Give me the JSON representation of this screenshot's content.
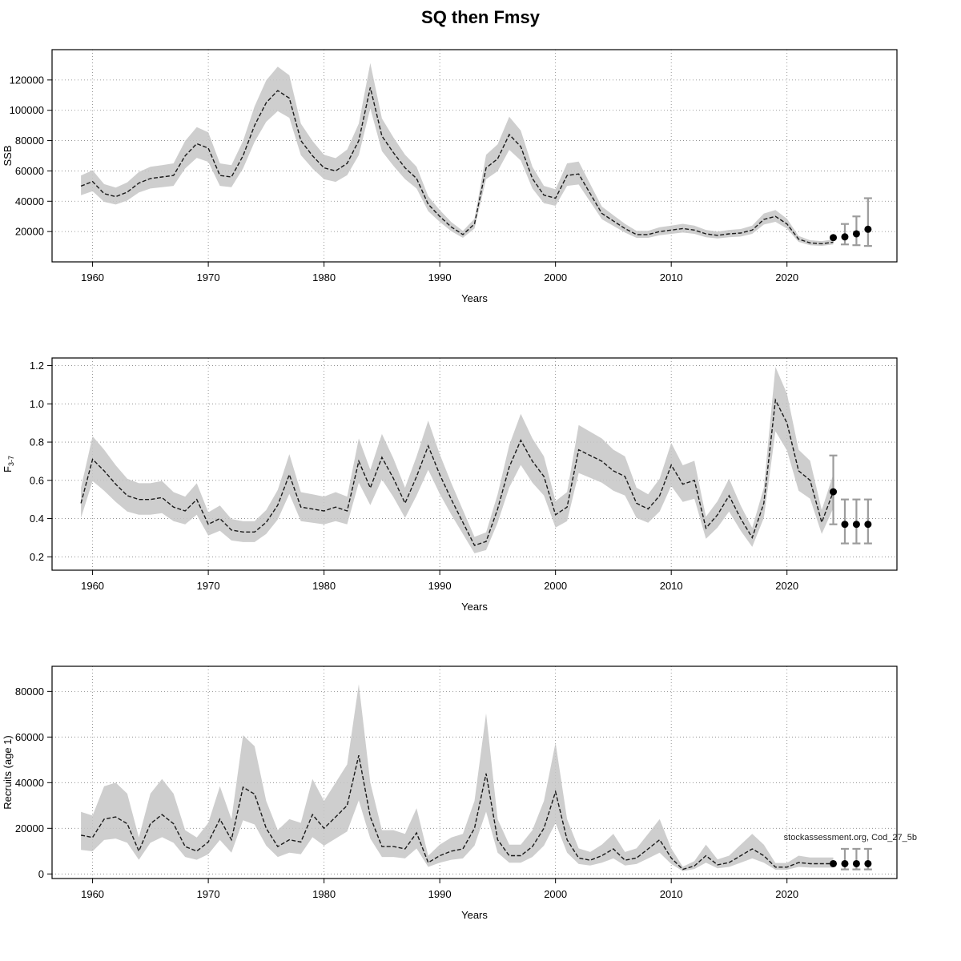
{
  "title": "SQ then Fmsy",
  "annotation": "stockassessment.org, Cod_27_5b",
  "colors": {
    "band": "#c6c6c6",
    "line": "#1a1a1a",
    "point": "#000000",
    "errorbar": "#9c9c9c",
    "grid": "#808080"
  },
  "chart_data": [
    {
      "type": "line",
      "name": "ssb",
      "ylabel": "SSB",
      "xlabel": "Years",
      "x_domain": [
        1956.5,
        2029.5
      ],
      "x_ticks": [
        1960,
        1970,
        1980,
        1990,
        2000,
        2010,
        2020
      ],
      "y_domain": [
        0,
        140000
      ],
      "y_ticks": [
        20000,
        40000,
        60000,
        80000,
        100000,
        120000
      ],
      "years_start": 1959,
      "values": [
        50000,
        53000,
        45000,
        43000,
        46000,
        52000,
        55000,
        56000,
        57000,
        70000,
        78000,
        75000,
        57000,
        56000,
        70000,
        90000,
        105000,
        113000,
        108000,
        80000,
        70000,
        62000,
        60000,
        65000,
        80000,
        115000,
        83000,
        72000,
        62000,
        55000,
        38000,
        30000,
        23000,
        18000,
        25000,
        62000,
        68000,
        84000,
        76000,
        55000,
        44000,
        42000,
        57000,
        58000,
        45000,
        32000,
        27000,
        22000,
        18000,
        18000,
        20000,
        21000,
        22000,
        21000,
        18500,
        17500,
        18500,
        19000,
        21000,
        28000,
        30000,
        25000,
        15000,
        12500,
        12000,
        13000
      ],
      "band": {
        "lo_factor": 0.88,
        "hi_factor": 1.14
      },
      "forecast": {
        "years": [
          2024,
          2025,
          2026,
          2027
        ],
        "values": [
          16000,
          16500,
          18500,
          21500
        ],
        "lo": [
          16000,
          11500,
          11000,
          10500
        ],
        "hi": [
          16000,
          25000,
          30000,
          42000
        ]
      }
    },
    {
      "type": "line",
      "name": "fbar",
      "ylabel": "F",
      "ylabel_sub": "3-7",
      "xlabel": "Years",
      "x_domain": [
        1956.5,
        2029.5
      ],
      "x_ticks": [
        1960,
        1970,
        1980,
        1990,
        2000,
        2010,
        2020
      ],
      "y_domain": [
        0.13,
        1.24
      ],
      "y_ticks": [
        0.2,
        0.4,
        0.6,
        0.8,
        1.0,
        1.2
      ],
      "years_start": 1959,
      "values": [
        0.48,
        0.71,
        0.65,
        0.58,
        0.52,
        0.5,
        0.5,
        0.51,
        0.46,
        0.44,
        0.5,
        0.37,
        0.4,
        0.34,
        0.33,
        0.33,
        0.38,
        0.47,
        0.63,
        0.46,
        0.45,
        0.44,
        0.46,
        0.44,
        0.7,
        0.56,
        0.72,
        0.61,
        0.48,
        0.62,
        0.78,
        0.63,
        0.5,
        0.38,
        0.26,
        0.28,
        0.45,
        0.67,
        0.81,
        0.7,
        0.62,
        0.42,
        0.46,
        0.76,
        0.73,
        0.7,
        0.65,
        0.62,
        0.48,
        0.45,
        0.52,
        0.68,
        0.58,
        0.6,
        0.35,
        0.42,
        0.52,
        0.4,
        0.3,
        0.48,
        1.02,
        0.9,
        0.65,
        0.6,
        0.38,
        0.54
      ],
      "band": {
        "lo_factor": 0.84,
        "hi_factor": 1.17
      },
      "forecast": {
        "years": [
          2024,
          2025,
          2026,
          2027
        ],
        "values": [
          0.54,
          0.37,
          0.37,
          0.37
        ],
        "lo": [
          0.37,
          0.27,
          0.27,
          0.27
        ],
        "hi": [
          0.73,
          0.5,
          0.5,
          0.5
        ]
      }
    },
    {
      "type": "line",
      "name": "recruits",
      "ylabel": "Recruits (age 1)",
      "xlabel": "Years",
      "x_domain": [
        1956.5,
        2029.5
      ],
      "x_ticks": [
        1960,
        1970,
        1980,
        1990,
        2000,
        2010,
        2020
      ],
      "y_domain": [
        -2000,
        91000
      ],
      "y_ticks": [
        0,
        20000,
        40000,
        60000,
        80000
      ],
      "years_start": 1959,
      "values": [
        17000,
        16000,
        24000,
        25000,
        22000,
        10000,
        22000,
        26000,
        22000,
        12000,
        10000,
        14000,
        24000,
        15000,
        38000,
        35000,
        20000,
        12000,
        15000,
        14000,
        26000,
        20000,
        25000,
        30000,
        52000,
        25000,
        12000,
        12000,
        11000,
        18000,
        5000,
        8000,
        10000,
        11000,
        20000,
        44000,
        15000,
        8000,
        8000,
        12000,
        20000,
        36000,
        15000,
        7000,
        6000,
        8000,
        11000,
        6000,
        7000,
        11000,
        15000,
        7000,
        2000,
        3500,
        8000,
        4000,
        5000,
        8000,
        11000,
        8000,
        3000,
        3000,
        5000,
        4500,
        4500,
        4500
      ],
      "band": {
        "lo_factor": 0.62,
        "hi_factor": 1.6
      },
      "forecast": {
        "years": [
          2024,
          2025,
          2026,
          2027
        ],
        "values": [
          4500,
          4500,
          4500,
          4500
        ],
        "lo": [
          4500,
          2000,
          2000,
          2000
        ],
        "hi": [
          4500,
          11000,
          11000,
          11000
        ]
      }
    }
  ]
}
